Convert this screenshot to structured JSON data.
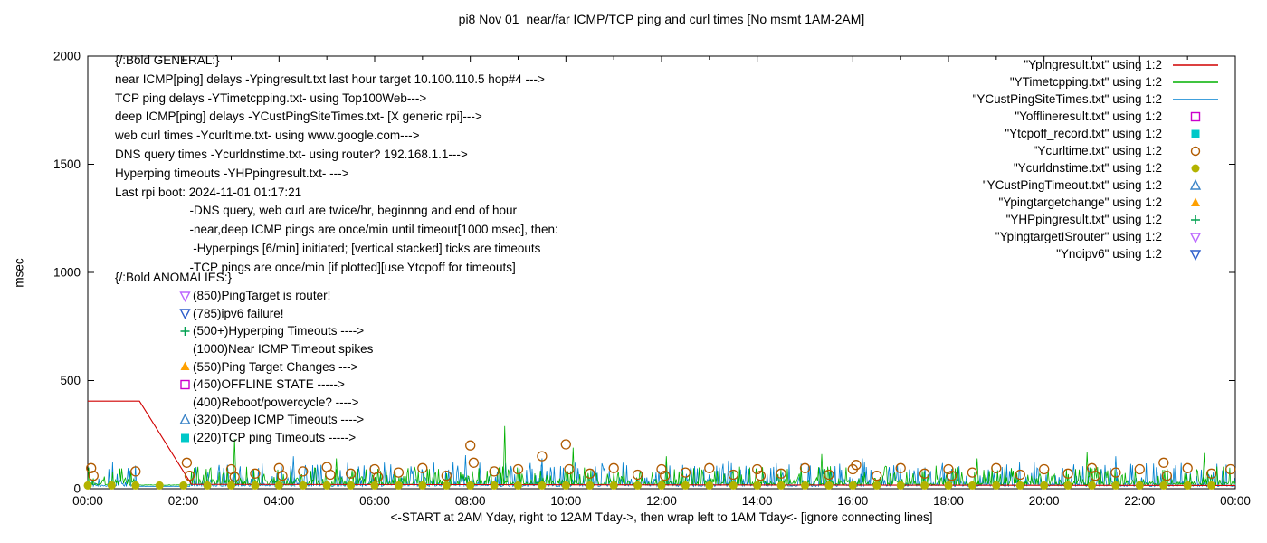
{
  "title": "pi8 Nov 01  near/far ICMP/TCP ping and curl times [No msmt 1AM-2AM]",
  "axes": {
    "ylabel": "msec",
    "xlabel": "<-START at 2AM Yday, right to 12AM Tday->, then wrap left to 1AM Tday<- [ignore connecting lines]"
  },
  "general_lines": [
    "{/:Bold GENERAL:}",
    "near ICMP[ping] delays -Ypingresult.txt last hour target 10.100.110.5 hop#4 --->",
    "TCP ping delays -YTimetcpping.txt- using Top100Web--->",
    "deep ICMP[ping] delays -YCustPingSiteTimes.txt- [X generic rpi]--->",
    "web curl times -Ycurltime.txt- using www.google.com--->",
    "DNS query times -Ycurldnstime.txt- using router? 192.168.1.1--->",
    "Hyperping timeouts -YHPpingresult.txt- --->",
    "Last rpi boot: 2024-11-01 01:17:21",
    "                      -DNS query, web curl are twice/hr, beginnng and end of hour",
    "                      -near,deep ICMP pings are once/min until timeout[1000 msec], then:",
    "                       -Hyperpings [6/min] initiated; [vertical stacked] ticks are timeouts",
    "                      -TCP pings are once/min [if plotted][use Ytcpoff for timeouts]"
  ],
  "anomalies_header": "{/:Bold ANOMALIES:}",
  "anomalies": [
    {
      "marker": "triangle-down-open",
      "color": "#bb66ff",
      "text": "(850)PingTarget is router!"
    },
    {
      "marker": "triangle-down-open",
      "color": "#2e5fcc",
      "text": "(785)ipv6 failure!"
    },
    {
      "marker": "plus",
      "color": "#00a050",
      "text": "(500+)Hyperping Timeouts ---->"
    },
    {
      "marker": "none",
      "color": "#000000",
      "text": "(1000)Near ICMP Timeout spikes"
    },
    {
      "marker": "triangle-up-filled",
      "color": "#ffa000",
      "text": "(550)Ping Target Changes --->"
    },
    {
      "marker": "square-open",
      "color": "#cc00cc",
      "text": "(450)OFFLINE STATE ----->"
    },
    {
      "marker": "none",
      "color": "#000000",
      "text": "(400)Reboot/powercycle? ---->"
    },
    {
      "marker": "triangle-up-open",
      "color": "#3d85c8",
      "text": "(320)Deep ICMP Timeouts ---->"
    },
    {
      "marker": "square-filled",
      "color": "#00c8c8",
      "text": "(220)TCP ping Timeouts ----->"
    }
  ],
  "legend": [
    {
      "label": "\"Ypingresult.txt\" using 1:2",
      "marker": "line",
      "color": "#d00000"
    },
    {
      "label": "\"YTimetcpping.txt\" using 1:2",
      "marker": "line",
      "color": "#00b000"
    },
    {
      "label": "\"YCustPingSiteTimes.txt\" using 1:2",
      "marker": "line",
      "color": "#0080d0"
    },
    {
      "label": "\"Yofflineresult.txt\" using 1:2",
      "marker": "square-open",
      "color": "#cc00cc"
    },
    {
      "label": "\"Ytcpoff_record.txt\" using 1:2",
      "marker": "square-filled",
      "color": "#00c8c8"
    },
    {
      "label": "\"Ycurltime.txt\" using 1:2",
      "marker": "circle-open",
      "color": "#b05a00"
    },
    {
      "label": "\"Ycurldnstime.txt\" using 1:2",
      "marker": "circle-filled",
      "color": "#b3b300"
    },
    {
      "label": "\"YCustPingTimeout.txt\" using 1:2",
      "marker": "triangle-up-open",
      "color": "#3d85c8"
    },
    {
      "label": "\"Ypingtargetchange\" using 1:2",
      "marker": "triangle-up-filled",
      "color": "#ffa000"
    },
    {
      "label": "\"YHPpingresult.txt\" using 1:2",
      "marker": "plus",
      "color": "#00a050"
    },
    {
      "label": "\"YpingtargetISrouter\" using 1:2",
      "marker": "triangle-down-open",
      "color": "#bb66ff"
    },
    {
      "label": "\"Ynoipv6\" using 1:2",
      "marker": "triangle-down-open",
      "color": "#2e5fcc"
    }
  ],
  "chart_data": {
    "type": "line",
    "x_unit": "time of day (hours, 24h window starting 2AM yesterday, labels wrap)",
    "xlim": [
      0,
      24
    ],
    "ylim": [
      0,
      2000
    ],
    "x_ticks": [
      "00:00",
      "02:00",
      "04:00",
      "06:00",
      "08:00",
      "10:00",
      "12:00",
      "14:00",
      "16:00",
      "18:00",
      "20:00",
      "22:00",
      "00:00"
    ],
    "y_ticks": [
      0,
      500,
      1000,
      1500,
      2000
    ],
    "grid": false,
    "legend_position": "top-right-outside-plot",
    "series": [
      {
        "name": "YCustPingSiteTimes.txt",
        "type": "noise-line",
        "color": "#0080d0",
        "base": 10,
        "amp": 110,
        "seed": 13,
        "n": 1250,
        "gap": [
          1.0,
          2.15
        ],
        "spikes": [
          [
            4.3,
            150
          ],
          [
            7.9,
            155
          ],
          [
            9.5,
            140
          ],
          [
            13.4,
            130
          ],
          [
            16.2,
            140
          ],
          [
            21.5,
            150
          ]
        ],
        "note": "deep ICMP ping times, noisy band ~10-120 msec"
      },
      {
        "name": "YTimetcpping.txt",
        "type": "noise-line",
        "color": "#00b000",
        "base": 16,
        "amp": 85,
        "seed": 7,
        "n": 1250,
        "gap": [
          1.0,
          2.15
        ],
        "spikes": [
          [
            3.07,
            230
          ],
          [
            5.2,
            140
          ],
          [
            8.72,
            290
          ],
          [
            10.15,
            190
          ],
          [
            12.1,
            150
          ],
          [
            15.35,
            160
          ],
          [
            18.6,
            140
          ],
          [
            20.9,
            170
          ],
          [
            23.35,
            165
          ]
        ],
        "note": "TCP ping times, noisy band ~15-100 msec with taller spikes"
      },
      {
        "name": "Ypingresult.txt",
        "type": "line",
        "color": "#d00000",
        "points": [
          [
            0,
            405
          ],
          [
            1.08,
            405
          ],
          [
            2.17,
            20
          ],
          [
            24,
            15
          ]
        ],
        "note": "near ICMP ping: flat ~400 msec until ~01:00, declines to ~15-20 msec by ~02:10, flat after"
      },
      {
        "name": "Ycurltime.txt",
        "type": "points",
        "marker": "circle-open",
        "color": "#b05a00",
        "size": 5,
        "points": [
          [
            0.07,
            95
          ],
          [
            0.12,
            60
          ],
          [
            1.0,
            80
          ],
          [
            2.07,
            120
          ],
          [
            2.13,
            60
          ],
          [
            3.0,
            90
          ],
          [
            3.07,
            55
          ],
          [
            3.5,
            70
          ],
          [
            4.0,
            95
          ],
          [
            4.07,
            60
          ],
          [
            4.5,
            80
          ],
          [
            5.0,
            100
          ],
          [
            5.07,
            65
          ],
          [
            5.5,
            70
          ],
          [
            6.0,
            90
          ],
          [
            6.07,
            55
          ],
          [
            6.5,
            75
          ],
          [
            7.0,
            95
          ],
          [
            7.5,
            60
          ],
          [
            8.0,
            200
          ],
          [
            8.07,
            120
          ],
          [
            8.5,
            80
          ],
          [
            9.0,
            90
          ],
          [
            9.5,
            150
          ],
          [
            10.0,
            205
          ],
          [
            10.07,
            90
          ],
          [
            10.5,
            70
          ],
          [
            11.0,
            95
          ],
          [
            11.5,
            65
          ],
          [
            12.0,
            90
          ],
          [
            12.07,
            60
          ],
          [
            12.5,
            75
          ],
          [
            13.0,
            95
          ],
          [
            13.5,
            65
          ],
          [
            14.0,
            90
          ],
          [
            14.07,
            60
          ],
          [
            14.5,
            70
          ],
          [
            15.0,
            95
          ],
          [
            15.5,
            65
          ],
          [
            16.0,
            90
          ],
          [
            16.07,
            110
          ],
          [
            16.5,
            60
          ],
          [
            17.0,
            95
          ],
          [
            17.5,
            70
          ],
          [
            18.0,
            90
          ],
          [
            18.07,
            60
          ],
          [
            18.5,
            75
          ],
          [
            19.0,
            95
          ],
          [
            19.5,
            65
          ],
          [
            20.0,
            90
          ],
          [
            20.5,
            70
          ],
          [
            21.0,
            95
          ],
          [
            21.07,
            60
          ],
          [
            21.5,
            75
          ],
          [
            22.0,
            90
          ],
          [
            22.5,
            120
          ],
          [
            22.57,
            60
          ],
          [
            23.0,
            95
          ],
          [
            23.5,
            70
          ],
          [
            23.9,
            90
          ]
        ],
        "note": "web curl times twice/hr, ~50-205 msec"
      },
      {
        "name": "Ycurldnstime.txt",
        "type": "points",
        "marker": "circle-filled",
        "color": "#b3b300",
        "size": 4.5,
        "points": [
          [
            0,
            15
          ],
          [
            0.5,
            15
          ],
          [
            1,
            15
          ],
          [
            1.5,
            15
          ],
          [
            2,
            15
          ],
          [
            2.5,
            15
          ],
          [
            3,
            15
          ],
          [
            3.5,
            15
          ],
          [
            4,
            15
          ],
          [
            4.5,
            15
          ],
          [
            5,
            15
          ],
          [
            5.5,
            15
          ],
          [
            6,
            15
          ],
          [
            6.5,
            15
          ],
          [
            7,
            15
          ],
          [
            7.5,
            15
          ],
          [
            8,
            15
          ],
          [
            8.5,
            15
          ],
          [
            9,
            15
          ],
          [
            9.5,
            15
          ],
          [
            10,
            15
          ],
          [
            10.5,
            15
          ],
          [
            11,
            15
          ],
          [
            11.5,
            15
          ],
          [
            12,
            15
          ],
          [
            12.5,
            15
          ],
          [
            13,
            15
          ],
          [
            13.5,
            15
          ],
          [
            14,
            15
          ],
          [
            14.5,
            15
          ],
          [
            15,
            15
          ],
          [
            15.5,
            15
          ],
          [
            16,
            15
          ],
          [
            16.5,
            15
          ],
          [
            17,
            15
          ],
          [
            17.5,
            15
          ],
          [
            18,
            15
          ],
          [
            18.5,
            15
          ],
          [
            19,
            15
          ],
          [
            19.5,
            15
          ],
          [
            20,
            15
          ],
          [
            20.5,
            15
          ],
          [
            21,
            15
          ],
          [
            21.5,
            15
          ],
          [
            22,
            15
          ],
          [
            22.5,
            15
          ],
          [
            23,
            15
          ],
          [
            23.5,
            15
          ]
        ],
        "note": "DNS query times twice/hr, ~15 msec, dots sitting on x-axis"
      }
    ]
  }
}
